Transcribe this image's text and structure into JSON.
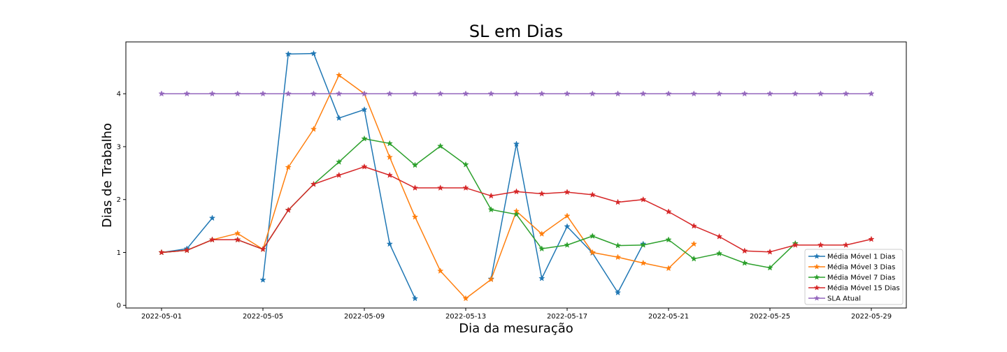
{
  "chart_data": {
    "type": "line",
    "title": "SL em Dias",
    "xlabel": "Dia da mesuração",
    "ylabel": "Dias de Trabalho",
    "x_start": "2022-05-01",
    "x_tick_labels": [
      "2022-05-01",
      "2022-05-05",
      "2022-05-09",
      "2022-05-13",
      "2022-05-17",
      "2022-05-21",
      "2022-05-25",
      "2022-05-29"
    ],
    "y_tick_labels": [
      "0",
      "1",
      "2",
      "3",
      "4"
    ],
    "ylim": [
      -0.05,
      4.98
    ],
    "grid": false,
    "legend_position": "bottom-right",
    "marker": "star",
    "series": [
      {
        "name": "Média Móvel 1 Dias",
        "color": "#1f77b4",
        "points": [
          [
            "2022-05-01",
            1.0
          ],
          [
            "2022-05-02",
            1.07
          ],
          [
            "2022-05-03",
            1.65
          ],
          [
            "2022-05-04",
            null
          ],
          [
            "2022-05-05",
            0.48
          ],
          [
            "2022-05-06",
            4.75
          ],
          [
            "2022-05-07",
            4.76
          ],
          [
            "2022-05-08",
            3.54
          ],
          [
            "2022-05-09",
            3.7
          ],
          [
            "2022-05-10",
            1.16
          ],
          [
            "2022-05-11",
            0.13
          ],
          [
            "2022-05-12",
            null
          ],
          [
            "2022-05-13",
            null
          ],
          [
            "2022-05-14",
            0.5
          ],
          [
            "2022-05-15",
            3.05
          ],
          [
            "2022-05-16",
            0.51
          ],
          [
            "2022-05-17",
            1.49
          ],
          [
            "2022-05-18",
            0.99
          ],
          [
            "2022-05-19",
            0.24
          ],
          [
            "2022-05-20",
            1.16
          ]
        ]
      },
      {
        "name": "Média Móvel 3 Dias",
        "color": "#ff7f0e",
        "points": [
          [
            "2022-05-01",
            1.0
          ],
          [
            "2022-05-02",
            1.04
          ],
          [
            "2022-05-03",
            1.24
          ],
          [
            "2022-05-04",
            1.36
          ],
          [
            "2022-05-05",
            1.06
          ],
          [
            "2022-05-06",
            2.61
          ],
          [
            "2022-05-07",
            3.33
          ],
          [
            "2022-05-08",
            4.35
          ],
          [
            "2022-05-09",
            4.0
          ],
          [
            "2022-05-10",
            2.8
          ],
          [
            "2022-05-11",
            1.67
          ],
          [
            "2022-05-12",
            0.65
          ],
          [
            "2022-05-13",
            0.13
          ],
          [
            "2022-05-14",
            0.49
          ],
          [
            "2022-05-15",
            1.78
          ],
          [
            "2022-05-16",
            1.35
          ],
          [
            "2022-05-17",
            1.69
          ],
          [
            "2022-05-18",
            1.0
          ],
          [
            "2022-05-19",
            0.91
          ],
          [
            "2022-05-20",
            0.8
          ],
          [
            "2022-05-21",
            0.7
          ],
          [
            "2022-05-22",
            1.16
          ]
        ]
      },
      {
        "name": "Média Móvel 7 Dias",
        "color": "#2ca02c",
        "points": [
          [
            "2022-05-01",
            1.0
          ],
          [
            "2022-05-02",
            1.04
          ],
          [
            "2022-05-03",
            1.24
          ],
          [
            "2022-05-04",
            1.24
          ],
          [
            "2022-05-05",
            1.06
          ],
          [
            "2022-05-06",
            1.8
          ],
          [
            "2022-05-07",
            2.29
          ],
          [
            "2022-05-08",
            2.71
          ],
          [
            "2022-05-09",
            3.15
          ],
          [
            "2022-05-10",
            3.06
          ],
          [
            "2022-05-11",
            2.65
          ],
          [
            "2022-05-12",
            3.01
          ],
          [
            "2022-05-13",
            2.66
          ],
          [
            "2022-05-14",
            1.81
          ],
          [
            "2022-05-15",
            1.72
          ],
          [
            "2022-05-16",
            1.07
          ],
          [
            "2022-05-17",
            1.14
          ],
          [
            "2022-05-18",
            1.31
          ],
          [
            "2022-05-19",
            1.13
          ],
          [
            "2022-05-20",
            1.14
          ],
          [
            "2022-05-21",
            1.24
          ],
          [
            "2022-05-22",
            0.88
          ],
          [
            "2022-05-23",
            0.98
          ],
          [
            "2022-05-24",
            0.8
          ],
          [
            "2022-05-25",
            0.71
          ],
          [
            "2022-05-26",
            1.17
          ]
        ]
      },
      {
        "name": "Média Móvel 15 Dias",
        "color": "#d62728",
        "points": [
          [
            "2022-05-01",
            1.0
          ],
          [
            "2022-05-02",
            1.04
          ],
          [
            "2022-05-03",
            1.24
          ],
          [
            "2022-05-04",
            1.24
          ],
          [
            "2022-05-05",
            1.06
          ],
          [
            "2022-05-06",
            1.8
          ],
          [
            "2022-05-07",
            2.29
          ],
          [
            "2022-05-08",
            2.46
          ],
          [
            "2022-05-09",
            2.62
          ],
          [
            "2022-05-10",
            2.46
          ],
          [
            "2022-05-11",
            2.22
          ],
          [
            "2022-05-12",
            2.22
          ],
          [
            "2022-05-13",
            2.22
          ],
          [
            "2022-05-14",
            2.07
          ],
          [
            "2022-05-15",
            2.15
          ],
          [
            "2022-05-16",
            2.11
          ],
          [
            "2022-05-17",
            2.14
          ],
          [
            "2022-05-18",
            2.09
          ],
          [
            "2022-05-19",
            1.95
          ],
          [
            "2022-05-20",
            2.0
          ],
          [
            "2022-05-21",
            1.77
          ],
          [
            "2022-05-22",
            1.5
          ],
          [
            "2022-05-23",
            1.3
          ],
          [
            "2022-05-24",
            1.03
          ],
          [
            "2022-05-25",
            1.01
          ],
          [
            "2022-05-26",
            1.14
          ],
          [
            "2022-05-27",
            1.14
          ],
          [
            "2022-05-28",
            1.14
          ],
          [
            "2022-05-29",
            1.25
          ]
        ]
      },
      {
        "name": "SLA Atual",
        "color": "#9467bd",
        "points": [
          [
            "2022-05-01",
            4.0
          ],
          [
            "2022-05-02",
            4.0
          ],
          [
            "2022-05-03",
            4.0
          ],
          [
            "2022-05-04",
            4.0
          ],
          [
            "2022-05-05",
            4.0
          ],
          [
            "2022-05-06",
            4.0
          ],
          [
            "2022-05-07",
            4.0
          ],
          [
            "2022-05-08",
            4.0
          ],
          [
            "2022-05-09",
            4.0
          ],
          [
            "2022-05-10",
            4.0
          ],
          [
            "2022-05-11",
            4.0
          ],
          [
            "2022-05-12",
            4.0
          ],
          [
            "2022-05-13",
            4.0
          ],
          [
            "2022-05-14",
            4.0
          ],
          [
            "2022-05-15",
            4.0
          ],
          [
            "2022-05-16",
            4.0
          ],
          [
            "2022-05-17",
            4.0
          ],
          [
            "2022-05-18",
            4.0
          ],
          [
            "2022-05-19",
            4.0
          ],
          [
            "2022-05-20",
            4.0
          ],
          [
            "2022-05-21",
            4.0
          ],
          [
            "2022-05-22",
            4.0
          ],
          [
            "2022-05-23",
            4.0
          ],
          [
            "2022-05-24",
            4.0
          ],
          [
            "2022-05-25",
            4.0
          ],
          [
            "2022-05-26",
            4.0
          ],
          [
            "2022-05-27",
            4.0
          ],
          [
            "2022-05-28",
            4.0
          ],
          [
            "2022-05-29",
            4.0
          ]
        ]
      }
    ]
  }
}
